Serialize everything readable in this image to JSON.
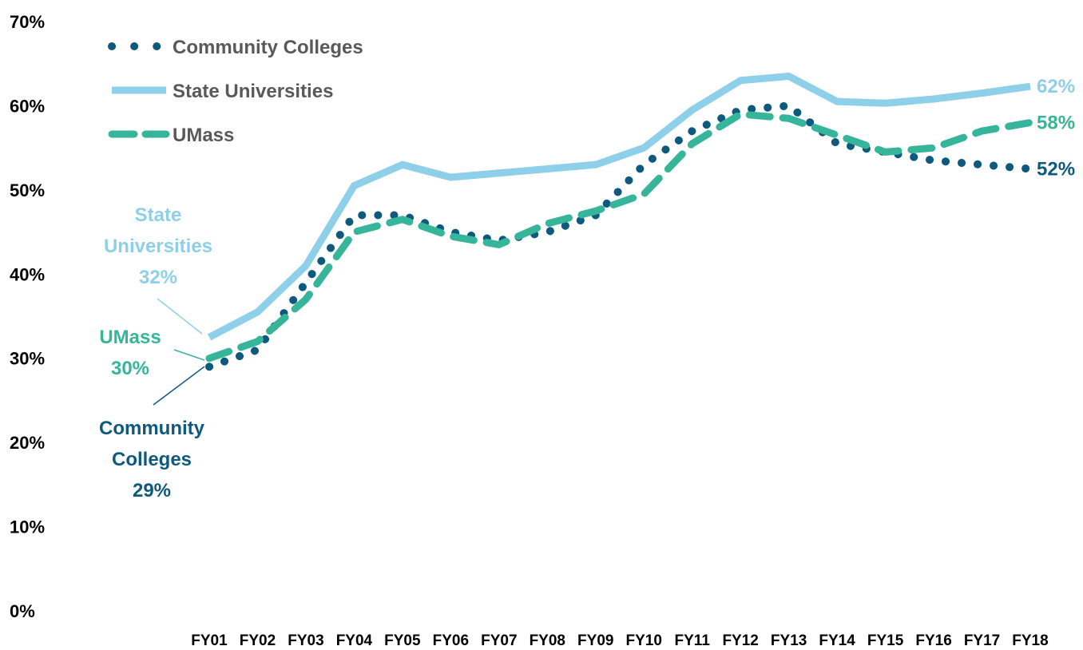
{
  "chart_data": {
    "type": "line",
    "title": "",
    "xlabel": "",
    "ylabel": "",
    "categories": [
      "FY01",
      "FY02",
      "FY03",
      "FY04",
      "FY05",
      "FY06",
      "FY07",
      "FY08",
      "FY09",
      "FY10",
      "FY11",
      "FY12",
      "FY13",
      "FY14",
      "FY15",
      "FY16",
      "FY17",
      "FY18"
    ],
    "y_ticks": [
      "0%",
      "10%",
      "20%",
      "30%",
      "40%",
      "50%",
      "60%",
      "70%"
    ],
    "ylim": [
      0,
      70
    ],
    "grid": false,
    "legend_position": "top-left",
    "series": [
      {
        "name": "Community Colleges",
        "style": "dotted",
        "color": "#0E5A7E",
        "values": [
          29,
          31,
          39,
          47,
          47,
          45,
          44,
          45,
          47,
          53,
          57,
          59.5,
          60,
          55.5,
          54.5,
          53.5,
          53,
          52.5
        ],
        "start_label": [
          "Community",
          "Colleges",
          "29%"
        ],
        "end_label": "52%"
      },
      {
        "name": "State Universities",
        "style": "solid",
        "color": "#8ECFEA",
        "values": [
          32.5,
          35.5,
          41,
          50.5,
          53,
          51.5,
          52,
          52.5,
          53,
          55,
          59.5,
          63,
          63.5,
          60.5,
          60.3,
          60.8,
          61.5,
          62.3
        ],
        "start_label": [
          "State",
          "Universities",
          "32%"
        ],
        "end_label": "62%"
      },
      {
        "name": "UMass",
        "style": "dashed",
        "color": "#36B59A",
        "values": [
          30,
          32,
          37,
          45,
          46.5,
          44.5,
          43.5,
          46,
          47.5,
          49.5,
          55.5,
          59,
          58.5,
          56.5,
          54.5,
          55,
          57,
          58
        ],
        "start_label": [
          "UMass",
          "30%"
        ],
        "end_label": "58%"
      }
    ]
  }
}
